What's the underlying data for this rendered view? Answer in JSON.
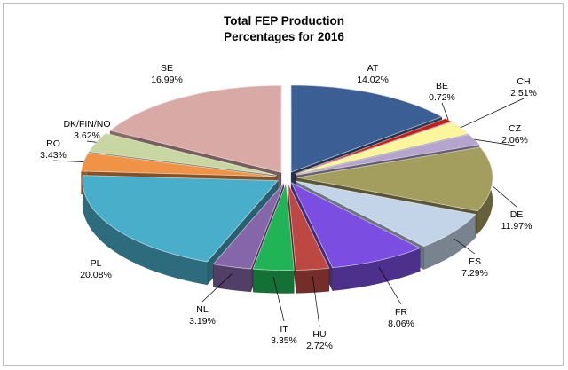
{
  "chart_data": {
    "type": "pie",
    "title": "Total FEP Production",
    "subtitle": "Percentages for 2016",
    "slices": [
      {
        "label": "AT",
        "value": 14.02,
        "value_text": "14.02%",
        "color": "#3b5f95"
      },
      {
        "label": "BE",
        "value": 0.72,
        "value_text": "0.72%",
        "color": "#c0201b"
      },
      {
        "label": "CH",
        "value": 2.51,
        "value_text": "2.51%",
        "color": "#fbf59c"
      },
      {
        "label": "CZ",
        "value": 2.06,
        "value_text": "2.06%",
        "color": "#b5a4cd"
      },
      {
        "label": "DE",
        "value": 11.97,
        "value_text": "11.97%",
        "color": "#a39d5e"
      },
      {
        "label": "ES",
        "value": 7.29,
        "value_text": "7.29%",
        "color": "#c3d4e8"
      },
      {
        "label": "FR",
        "value": 8.06,
        "value_text": "8.06%",
        "color": "#7b4de0"
      },
      {
        "label": "HU",
        "value": 2.72,
        "value_text": "2.72%",
        "color": "#bd4843"
      },
      {
        "label": "IT",
        "value": 3.35,
        "value_text": "3.35%",
        "color": "#21b456"
      },
      {
        "label": "NL",
        "value": 3.19,
        "value_text": "3.19%",
        "color": "#8566a8"
      },
      {
        "label": "PL",
        "value": 20.08,
        "value_text": "20.08%",
        "color": "#49aec9"
      },
      {
        "label": "RO",
        "value": 3.43,
        "value_text": "3.43%",
        "color": "#f09347"
      },
      {
        "label": "DK/FIN/NO",
        "value": 3.62,
        "value_text": "3.62%",
        "color": "#c8d6a2"
      },
      {
        "label": "SE",
        "value": 16.99,
        "value_text": "16.99%",
        "color": "#d9a9a6"
      }
    ],
    "exploded": true,
    "three_d": true,
    "legend": "none"
  }
}
